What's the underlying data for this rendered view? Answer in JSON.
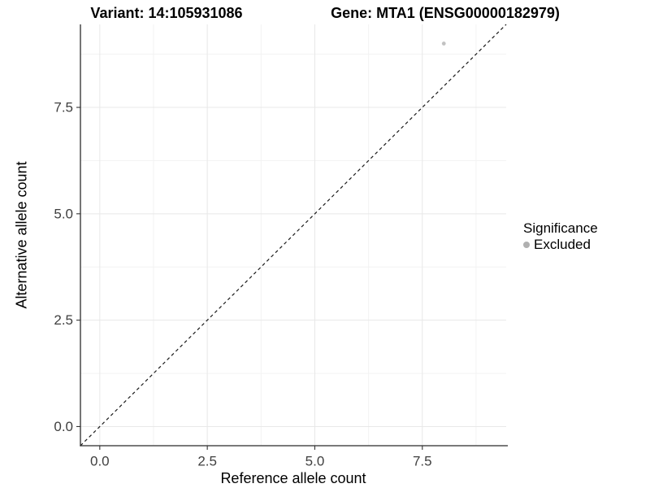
{
  "chart_data": {
    "type": "scatter",
    "titles": {
      "left": "Variant: 14:105931086",
      "right": "Gene: MTA1 (ENSG00000182979)"
    },
    "xlabel": "Reference allele count",
    "ylabel": "Alternative allele count",
    "xlim": [
      -0.45,
      9.45
    ],
    "ylim": [
      -0.45,
      9.45
    ],
    "xticks": [
      0,
      2.5,
      5,
      7.5
    ],
    "yticks": [
      0,
      2.5,
      5,
      7.5
    ],
    "xtick_labels": [
      "0.0",
      "2.5",
      "5.0",
      "7.5"
    ],
    "ytick_labels": [
      "0.0",
      "2.5",
      "5.0",
      "7.5"
    ],
    "grid": {
      "major": true,
      "minor": true
    },
    "reference_line": {
      "kind": "identity",
      "slope": 1,
      "intercept": 0,
      "style": "dashed",
      "color": "#1a1a1a"
    },
    "series": [
      {
        "name": "Excluded",
        "color": "#c2c2c2",
        "points": [
          {
            "x": 8,
            "y": 9
          }
        ]
      }
    ],
    "legend": {
      "title": "Significance",
      "position": "right",
      "items": [
        {
          "label": "Excluded",
          "color": "#b0b0b0"
        }
      ]
    },
    "colors": {
      "panel_background": "#ffffff",
      "grid_major": "#e8e8e8",
      "grid_minor": "#f2f2f2",
      "axis_line": "#2b2b2b",
      "tick_mark": "#333333",
      "tick_text": "#404040"
    }
  }
}
